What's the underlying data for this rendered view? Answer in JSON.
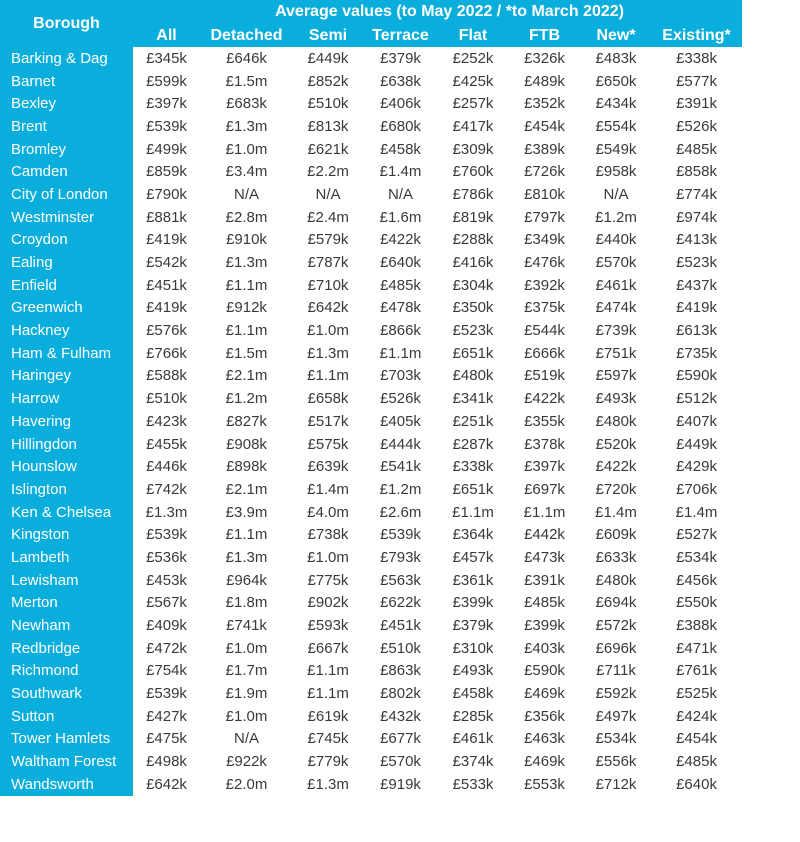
{
  "header": {
    "borough": "Borough",
    "average_title": "Average values (to May 2022 / *to March 2022)",
    "columns": [
      "All",
      "Detached",
      "Semi",
      "Terrace",
      "Flat",
      "FTB",
      "New*",
      "Existing*"
    ]
  },
  "rows": [
    {
      "borough": "Barking & Dag",
      "values": [
        "£345k",
        "£646k",
        "£449k",
        "£379k",
        "£252k",
        "£326k",
        "£483k",
        "£338k"
      ]
    },
    {
      "borough": "Barnet",
      "values": [
        "£599k",
        "£1.5m",
        "£852k",
        "£638k",
        "£425k",
        "£489k",
        "£650k",
        "£577k"
      ]
    },
    {
      "borough": "Bexley",
      "values": [
        "£397k",
        "£683k",
        "£510k",
        "£406k",
        "£257k",
        "£352k",
        "£434k",
        "£391k"
      ]
    },
    {
      "borough": "Brent",
      "values": [
        "£539k",
        "£1.3m",
        "£813k",
        "£680k",
        "£417k",
        "£454k",
        "£554k",
        "£526k"
      ]
    },
    {
      "borough": "Bromley",
      "values": [
        "£499k",
        "£1.0m",
        "£621k",
        "£458k",
        "£309k",
        "£389k",
        "£549k",
        "£485k"
      ]
    },
    {
      "borough": "Camden",
      "values": [
        "£859k",
        "£3.4m",
        "£2.2m",
        "£1.4m",
        "£760k",
        "£726k",
        "£958k",
        "£858k"
      ]
    },
    {
      "borough": "City of London",
      "values": [
        "£790k",
        "N/A",
        "N/A",
        "N/A",
        "£786k",
        "£810k",
        "N/A",
        "£774k"
      ]
    },
    {
      "borough": "Westminster",
      "values": [
        "£881k",
        "£2.8m",
        "£2.4m",
        "£1.6m",
        "£819k",
        "£797k",
        "£1.2m",
        "£974k"
      ]
    },
    {
      "borough": "Croydon",
      "values": [
        "£419k",
        "£910k",
        "£579k",
        "£422k",
        "£288k",
        "£349k",
        "£440k",
        "£413k"
      ]
    },
    {
      "borough": "Ealing",
      "values": [
        "£542k",
        "£1.3m",
        "£787k",
        "£640k",
        "£416k",
        "£476k",
        "£570k",
        "£523k"
      ]
    },
    {
      "borough": "Enfield",
      "values": [
        "£451k",
        "£1.1m",
        "£710k",
        "£485k",
        "£304k",
        "£392k",
        "£461k",
        "£437k"
      ]
    },
    {
      "borough": "Greenwich",
      "values": [
        "£419k",
        "£912k",
        "£642k",
        "£478k",
        "£350k",
        "£375k",
        "£474k",
        "£419k"
      ]
    },
    {
      "borough": "Hackney",
      "values": [
        "£576k",
        "£1.1m",
        "£1.0m",
        "£866k",
        "£523k",
        "£544k",
        "£739k",
        "£613k"
      ]
    },
    {
      "borough": "Ham & Fulham",
      "values": [
        "£766k",
        "£1.5m",
        "£1.3m",
        "£1.1m",
        "£651k",
        "£666k",
        "£751k",
        "£735k"
      ]
    },
    {
      "borough": "Haringey",
      "values": [
        "£588k",
        "£2.1m",
        "£1.1m",
        "£703k",
        "£480k",
        "£519k",
        "£597k",
        "£590k"
      ]
    },
    {
      "borough": "Harrow",
      "values": [
        "£510k",
        "£1.2m",
        "£658k",
        "£526k",
        "£341k",
        "£422k",
        "£493k",
        "£512k"
      ]
    },
    {
      "borough": "Havering",
      "values": [
        "£423k",
        "£827k",
        "£517k",
        "£405k",
        "£251k",
        "£355k",
        "£480k",
        "£407k"
      ]
    },
    {
      "borough": "Hillingdon",
      "values": [
        "£455k",
        "£908k",
        "£575k",
        "£444k",
        "£287k",
        "£378k",
        "£520k",
        "£449k"
      ]
    },
    {
      "borough": "Hounslow",
      "values": [
        "£446k",
        "£898k",
        "£639k",
        "£541k",
        "£338k",
        "£397k",
        "£422k",
        "£429k"
      ]
    },
    {
      "borough": "Islington",
      "values": [
        "£742k",
        "£2.1m",
        "£1.4m",
        "£1.2m",
        "£651k",
        "£697k",
        "£720k",
        "£706k"
      ]
    },
    {
      "borough": "Ken & Chelsea",
      "values": [
        "£1.3m",
        "£3.9m",
        "£4.0m",
        "£2.6m",
        "£1.1m",
        "£1.1m",
        "£1.4m",
        "£1.4m"
      ]
    },
    {
      "borough": "Kingston",
      "values": [
        "£539k",
        "£1.1m",
        "£738k",
        "£539k",
        "£364k",
        "£442k",
        "£609k",
        "£527k"
      ]
    },
    {
      "borough": "Lambeth",
      "values": [
        "£536k",
        "£1.3m",
        "£1.0m",
        "£793k",
        "£457k",
        "£473k",
        "£633k",
        "£534k"
      ]
    },
    {
      "borough": "Lewisham",
      "values": [
        "£453k",
        "£964k",
        "£775k",
        "£563k",
        "£361k",
        "£391k",
        "£480k",
        "£456k"
      ]
    },
    {
      "borough": "Merton",
      "values": [
        "£567k",
        "£1.8m",
        "£902k",
        "£622k",
        "£399k",
        "£485k",
        "£694k",
        "£550k"
      ]
    },
    {
      "borough": "Newham",
      "values": [
        "£409k",
        "£741k",
        "£593k",
        "£451k",
        "£379k",
        "£399k",
        "£572k",
        "£388k"
      ]
    },
    {
      "borough": "Redbridge",
      "values": [
        "£472k",
        "£1.0m",
        "£667k",
        "£510k",
        "£310k",
        "£403k",
        "£696k",
        "£471k"
      ]
    },
    {
      "borough": "Richmond",
      "values": [
        "£754k",
        "£1.7m",
        "£1.1m",
        "£863k",
        "£493k",
        "£590k",
        "£711k",
        "£761k"
      ]
    },
    {
      "borough": "Southwark",
      "values": [
        "£539k",
        "£1.9m",
        "£1.1m",
        "£802k",
        "£458k",
        "£469k",
        "£592k",
        "£525k"
      ]
    },
    {
      "borough": "Sutton",
      "values": [
        "£427k",
        "£1.0m",
        "£619k",
        "£432k",
        "£285k",
        "£356k",
        "£497k",
        "£424k"
      ]
    },
    {
      "borough": "Tower Hamlets",
      "values": [
        "£475k",
        "N/A",
        "£745k",
        "£677k",
        "£461k",
        "£463k",
        "£534k",
        "£454k"
      ]
    },
    {
      "borough": "Waltham Forest",
      "values": [
        "£498k",
        "£922k",
        "£779k",
        "£570k",
        "£374k",
        "£469k",
        "£556k",
        "£485k"
      ]
    },
    {
      "borough": "Wandsworth",
      "values": [
        "£642k",
        "£2.0m",
        "£1.3m",
        "£919k",
        "£533k",
        "£553k",
        "£712k",
        "£640k"
      ]
    }
  ],
  "colors": {
    "header_blue": "#0aaedd",
    "text_dark": "#3a3a3a"
  }
}
